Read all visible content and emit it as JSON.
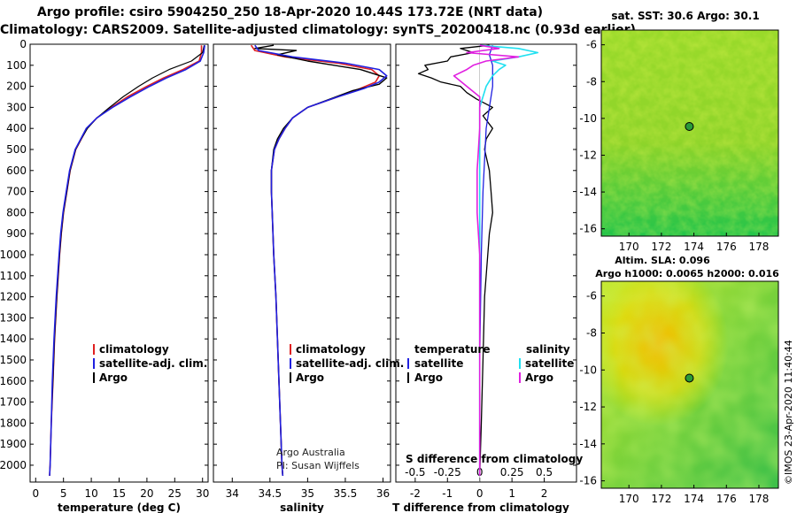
{
  "header": {
    "line1": "Argo profile: csiro 5904250_250 18-Apr-2020 10.44S 173.72E (NRT data)",
    "line2": "Climatology: CARS2009. Satellite-adjusted climatology: synTS_20200418.nc (0.93d earlier)"
  },
  "footer": {
    "credit1": "Argo Australia",
    "credit2": "PI: Susan Wijffels",
    "stamp": "©IMOS 23-Apr-2020 11:40:44"
  },
  "colors": {
    "climatology": "#e02020",
    "satellite": "#2020e0",
    "argo": "#000000",
    "sal_satellite": "#20e0f0",
    "sal_argo": "#e020e0"
  },
  "chart_data": [
    {
      "type": "line",
      "id": "temperature",
      "title": "",
      "xlabel": "temperature (deg C)",
      "ylabel": "",
      "xlim": [
        -1,
        31
      ],
      "ylim": [
        2080,
        0
      ],
      "xticks": [
        "0",
        "5",
        "10",
        "15",
        "20",
        "25",
        "30"
      ],
      "yticks": [
        "0",
        "100",
        "200",
        "300",
        "400",
        "500",
        "600",
        "700",
        "800",
        "900",
        "1000",
        "1100",
        "1200",
        "1300",
        "1400",
        "1500",
        "1600",
        "1700",
        "1800",
        "1900",
        "2000"
      ],
      "legend": [
        "climatology",
        "satellite-adj. clim.",
        "Argo"
      ],
      "series": [
        {
          "name": "climatology",
          "depth": [
            5,
            40,
            80,
            120,
            160,
            200,
            250,
            300,
            350,
            400,
            450,
            500,
            600,
            700,
            800,
            900,
            1000,
            1200,
            1400,
            1600,
            1800,
            2000,
            2050
          ],
          "values": [
            29.8,
            29.8,
            29.4,
            26.5,
            23.0,
            20.0,
            16.5,
            13.6,
            11.0,
            9.2,
            8.2,
            7.2,
            6.2,
            5.6,
            5.0,
            4.6,
            4.3,
            3.8,
            3.4,
            3.1,
            2.8,
            2.6,
            2.5
          ]
        },
        {
          "name": "satellite-adj. clim.",
          "depth": [
            5,
            40,
            80,
            120,
            160,
            200,
            250,
            300,
            350,
            400,
            450,
            500,
            600,
            700,
            800,
            900,
            1000,
            1200,
            1400,
            1600,
            1800,
            2000,
            2050
          ],
          "values": [
            30.4,
            30.2,
            29.6,
            27.0,
            23.5,
            20.5,
            17.0,
            13.8,
            11.0,
            9.1,
            8.1,
            7.1,
            6.1,
            5.5,
            4.9,
            4.5,
            4.2,
            3.7,
            3.3,
            3.0,
            2.8,
            2.6,
            2.5
          ]
        },
        {
          "name": "Argo",
          "depth": [
            5,
            40,
            80,
            120,
            160,
            200,
            250,
            300,
            350,
            400,
            450,
            500,
            600,
            700,
            800,
            900,
            1000,
            1200,
            1400,
            1600,
            1800,
            2000,
            2050
          ],
          "values": [
            30.3,
            30.0,
            28.0,
            24.0,
            21.0,
            18.5,
            15.7,
            13.3,
            11.0,
            9.3,
            8.2,
            7.2,
            6.2,
            5.6,
            5.0,
            4.6,
            4.3,
            3.8,
            3.4,
            3.1,
            2.8,
            2.6,
            2.5
          ]
        }
      ]
    },
    {
      "type": "line",
      "id": "salinity",
      "title": "",
      "xlabel": "salinity",
      "ylabel": "",
      "xlim": [
        33.75,
        36.1
      ],
      "ylim": [
        2080,
        0
      ],
      "xticks": [
        "34",
        "34.5",
        "35",
        "35.5",
        "36"
      ],
      "legend": [
        "climatology",
        "satellite-adj. clim.",
        "Argo"
      ],
      "series": [
        {
          "name": "climatology",
          "depth": [
            5,
            30,
            60,
            90,
            120,
            150,
            180,
            210,
            250,
            300,
            350,
            400,
            450,
            500,
            600,
            700,
            800,
            1000,
            1200,
            1400,
            1600,
            1800,
            2000,
            2050
          ],
          "values": [
            34.25,
            34.3,
            34.7,
            35.4,
            35.85,
            35.95,
            35.9,
            35.7,
            35.4,
            35.0,
            34.8,
            34.7,
            34.62,
            34.56,
            34.52,
            34.52,
            34.53,
            34.55,
            34.58,
            34.6,
            34.62,
            34.64,
            34.66,
            34.67
          ]
        },
        {
          "name": "satellite-adj. clim.",
          "depth": [
            5,
            30,
            60,
            90,
            120,
            150,
            180,
            210,
            250,
            300,
            350,
            400,
            450,
            500,
            600,
            700,
            800,
            1000,
            1200,
            1400,
            1600,
            1800,
            2000,
            2050
          ],
          "values": [
            34.3,
            34.35,
            34.8,
            35.5,
            35.95,
            36.05,
            35.95,
            35.75,
            35.4,
            35.0,
            34.8,
            34.7,
            34.62,
            34.56,
            34.52,
            34.52,
            34.53,
            34.55,
            34.58,
            34.6,
            34.62,
            34.64,
            34.66,
            34.67
          ]
        },
        {
          "name": "Argo",
          "depth": [
            5,
            20,
            30,
            50,
            80,
            120,
            160,
            190,
            220,
            260,
            300,
            350,
            400,
            450,
            500,
            600,
            700,
            800,
            1000,
            1200,
            1400,
            1600,
            1800,
            2000,
            2050
          ],
          "values": [
            34.55,
            34.3,
            34.85,
            34.6,
            35.0,
            35.7,
            36.05,
            35.95,
            35.6,
            35.3,
            35.0,
            34.8,
            34.68,
            34.6,
            34.55,
            34.52,
            34.52,
            34.53,
            34.55,
            34.58,
            34.6,
            34.62,
            34.64,
            34.66,
            34.67
          ]
        }
      ]
    },
    {
      "type": "line",
      "id": "differences",
      "title": "",
      "xlabel": "T difference from climatology",
      "x2label": "S difference from climatology",
      "xlim": [
        -2.6,
        3.0
      ],
      "ylim": [
        2080,
        0
      ],
      "xticks": [
        "-2",
        "-1",
        "0",
        "1",
        "2"
      ],
      "x2ticks": [
        "-0.5",
        "-0.25",
        "0",
        "0.25",
        "0.5"
      ],
      "legend_titles": [
        "temperature",
        "salinity"
      ],
      "legend": [
        "satellite",
        "Argo",
        "satellite",
        "Argo"
      ],
      "series": [
        {
          "name": "T satellite",
          "depth": [
            5,
            50,
            100,
            200,
            400,
            700,
            1000,
            1500,
            2050
          ],
          "values": [
            0.4,
            0.3,
            0.4,
            0.4,
            0.2,
            0.1,
            0.05,
            0.0,
            0.0
          ]
        },
        {
          "name": "T Argo",
          "depth": [
            5,
            20,
            40,
            60,
            80,
            100,
            120,
            140,
            160,
            180,
            200,
            230,
            260,
            300,
            340,
            400,
            450,
            500,
            600,
            700,
            800,
            900,
            1000,
            1200,
            1500,
            1800,
            2050
          ],
          "values": [
            0.3,
            -0.6,
            -0.2,
            -0.9,
            -1.0,
            -1.7,
            -1.6,
            -1.9,
            -1.5,
            -1.2,
            -0.6,
            -0.4,
            -0.1,
            0.4,
            0.1,
            0.4,
            0.2,
            0.15,
            0.3,
            0.35,
            0.4,
            0.3,
            0.25,
            0.15,
            0.1,
            0.05,
            0.0
          ]
        },
        {
          "name": "S satellite",
          "depth": [
            5,
            20,
            40,
            60,
            80,
            100,
            120,
            150,
            200,
            300,
            400,
            500,
            700,
            1000,
            1500,
            2050
          ],
          "values": [
            0.0,
            0.3,
            0.45,
            0.3,
            0.1,
            0.2,
            0.15,
            0.1,
            0.05,
            0.0,
            0.0,
            0.0,
            0.0,
            0.0,
            0.0,
            0.0
          ]
        },
        {
          "name": "S Argo",
          "depth": [
            5,
            20,
            40,
            60,
            80,
            100,
            120,
            150,
            200,
            250,
            300,
            400,
            500,
            600,
            800,
            1000,
            1500,
            2050
          ],
          "values": [
            0.0,
            0.15,
            -0.1,
            0.3,
            0.05,
            -0.05,
            -0.1,
            -0.2,
            -0.1,
            0.0,
            0.0,
            0.0,
            -0.01,
            -0.02,
            -0.02,
            0.0,
            0.0,
            0.0
          ]
        }
      ]
    },
    {
      "type": "heatmap",
      "id": "sst-map",
      "title": "sat. SST: 30.6 Argo: 30.1",
      "xticks": [
        "170",
        "172",
        "174",
        "176",
        "178"
      ],
      "yticks": [
        "-6",
        "-8",
        "-10",
        "-12",
        "-14",
        "-16"
      ],
      "xlim": [
        168.3,
        179.2
      ],
      "ylim": [
        -16.4,
        -5.2
      ],
      "argo_position": [
        173.72,
        -10.44
      ]
    },
    {
      "type": "heatmap",
      "id": "sla-map",
      "title": "Altim. SLA: 0.096",
      "subtitle": "Argo h1000: 0.0065 h2000: 0.016",
      "xticks": [
        "170",
        "172",
        "174",
        "176",
        "178"
      ],
      "yticks": [
        "-6",
        "-8",
        "-10",
        "-12",
        "-14",
        "-16"
      ],
      "xlim": [
        168.3,
        179.2
      ],
      "ylim": [
        -16.4,
        -5.2
      ],
      "argo_position": [
        173.72,
        -10.44
      ]
    }
  ]
}
